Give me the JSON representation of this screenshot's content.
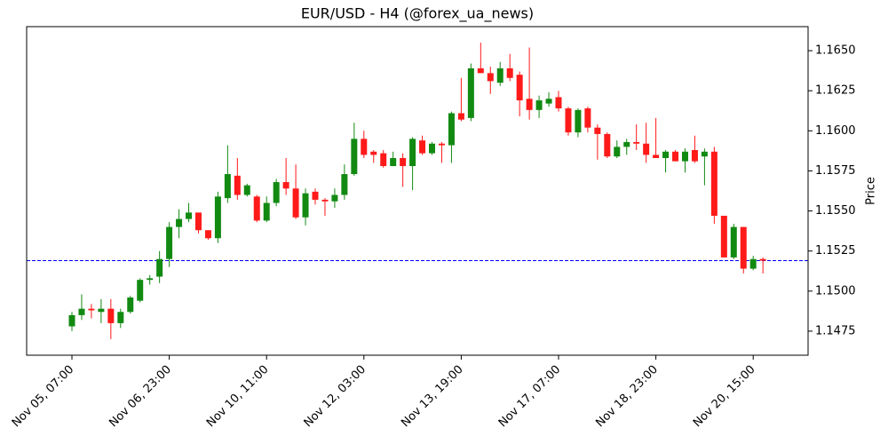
{
  "chart_data": {
    "type": "candlestick",
    "title": "EUR/USD - H4 (@forex_ua_news)",
    "y_label": "Price",
    "categories": [
      "Nov 05, 07:00",
      null,
      null,
      null,
      null,
      null,
      null,
      null,
      null,
      null,
      "Nov 06, 23:00",
      null,
      null,
      null,
      null,
      null,
      null,
      null,
      null,
      null,
      "Nov 10, 11:00",
      null,
      null,
      null,
      null,
      null,
      null,
      null,
      null,
      null,
      "Nov 12, 03:00",
      null,
      null,
      null,
      null,
      null,
      null,
      null,
      null,
      null,
      "Nov 13, 19:00",
      null,
      null,
      null,
      null,
      null,
      null,
      null,
      null,
      null,
      "Nov 17, 07:00",
      null,
      null,
      null,
      null,
      null,
      null,
      null,
      null,
      null,
      "Nov 18, 23:00",
      null,
      null,
      null,
      null,
      null,
      null,
      null,
      null,
      null,
      "Nov 20, 15:00",
      null
    ],
    "open": [
      1.1478,
      1.1485,
      1.1489,
      1.1487,
      1.1489,
      1.148,
      1.1487,
      1.1494,
      1.1507,
      1.1509,
      1.152,
      1.154,
      1.1545,
      1.1549,
      1.1538,
      1.1533,
      1.1558,
      1.1572,
      1.156,
      1.1559,
      1.1544,
      1.1555,
      1.1568,
      1.1564,
      1.1546,
      1.1562,
      1.1557,
      1.1556,
      1.156,
      1.1573,
      1.1595,
      1.1587,
      1.1586,
      1.1578,
      1.1583,
      1.1578,
      1.1594,
      1.1586,
      1.1592,
      1.1591,
      1.1611,
      1.1608,
      1.1639,
      1.1636,
      1.163,
      1.1639,
      1.1635,
      1.162,
      1.1613,
      1.1617,
      1.1621,
      1.1614,
      1.1599,
      1.1614,
      1.1602,
      1.1598,
      1.1584,
      1.159,
      1.1593,
      1.1592,
      1.1585,
      1.1583,
      1.1587,
      1.1581,
      1.1588,
      1.1584,
      1.1587,
      1.1547,
      1.1521,
      1.154,
      1.1514,
      1.152
    ],
    "high": [
      1.1487,
      1.1498,
      1.1492,
      1.1495,
      1.1495,
      1.1489,
      1.1497,
      1.1508,
      1.151,
      1.1525,
      1.1543,
      1.1551,
      1.1555,
      1.1549,
      1.1538,
      1.1562,
      1.1591,
      1.1583,
      1.1567,
      1.156,
      1.1559,
      1.157,
      1.1583,
      1.1579,
      1.1564,
      1.1564,
      1.1558,
      1.1564,
      1.1579,
      1.1605,
      1.16,
      1.1588,
      1.1588,
      1.1587,
      1.1586,
      1.1596,
      1.1597,
      1.1593,
      1.1593,
      1.1612,
      1.1633,
      1.1642,
      1.1655,
      1.164,
      1.1643,
      1.1648,
      1.1637,
      1.1652,
      1.1622,
      1.1624,
      1.1625,
      1.1615,
      1.1614,
      1.1615,
      1.1604,
      1.1599,
      1.1594,
      1.1595,
      1.1604,
      1.1605,
      1.1608,
      1.1588,
      1.1588,
      1.1589,
      1.1597,
      1.1589,
      1.159,
      1.1547,
      1.1542,
      1.154,
      1.1522,
      1.1521
    ],
    "low": [
      1.1475,
      1.1482,
      1.1483,
      1.148,
      1.147,
      1.1477,
      1.1486,
      1.1493,
      1.1504,
      1.1505,
      1.1515,
      1.1533,
      1.1543,
      1.1536,
      1.1532,
      1.153,
      1.1555,
      1.1557,
      1.1559,
      1.1543,
      1.1543,
      1.1553,
      1.156,
      1.1545,
      1.1541,
      1.1554,
      1.1547,
      1.1552,
      1.1557,
      1.1572,
      1.1583,
      1.158,
      1.1577,
      1.1578,
      1.1565,
      1.1563,
      1.1585,
      1.1585,
      1.158,
      1.158,
      1.1606,
      1.1606,
      1.1636,
      1.1623,
      1.1628,
      1.1631,
      1.1609,
      1.1607,
      1.1608,
      1.1615,
      1.1612,
      1.1597,
      1.1596,
      1.1599,
      1.1582,
      1.1583,
      1.1583,
      1.1585,
      1.1588,
      1.158,
      1.1583,
      1.1574,
      1.1581,
      1.1574,
      1.158,
      1.1566,
      1.1542,
      1.1521,
      1.152,
      1.1511,
      1.1513,
      1.1511
    ],
    "close": [
      1.1485,
      1.1489,
      1.1488,
      1.1489,
      1.148,
      1.1487,
      1.1496,
      1.1507,
      1.1508,
      1.152,
      1.154,
      1.1545,
      1.1549,
      1.1538,
      1.1533,
      1.1559,
      1.1573,
      1.156,
      1.1566,
      1.1544,
      1.1555,
      1.1568,
      1.1564,
      1.1546,
      1.1561,
      1.1557,
      1.1556,
      1.156,
      1.1573,
      1.1595,
      1.1585,
      1.1585,
      1.1578,
      1.1583,
      1.1578,
      1.1595,
      1.1586,
      1.1592,
      1.1591,
      1.1611,
      1.1607,
      1.1639,
      1.1636,
      1.1631,
      1.1639,
      1.1633,
      1.1619,
      1.1613,
      1.1619,
      1.162,
      1.1614,
      1.1599,
      1.1613,
      1.1602,
      1.1598,
      1.1584,
      1.159,
      1.1593,
      1.1592,
      1.1585,
      1.1583,
      1.1587,
      1.1581,
      1.1587,
      1.1581,
      1.1587,
      1.1547,
      1.1521,
      1.154,
      1.1514,
      1.152,
      1.1519
    ],
    "up_color": "#128a12",
    "down_color": "#ff1a1a",
    "hline": {
      "value": 1.1519,
      "color": "#0000ff",
      "style": "dashed"
    },
    "ylim": [
      1.146,
      1.1665
    ],
    "yticks": [
      1.1475,
      {
        "value": 1.15,
        "label": "1.1500"
      },
      1.1525,
      {
        "value": 1.155,
        "label": "1.1550"
      },
      1.1575,
      {
        "value": 1.16,
        "label": "1.1600"
      },
      1.1625,
      {
        "value": 1.165,
        "label": "1.1650"
      }
    ],
    "y_axis_side": "right"
  }
}
